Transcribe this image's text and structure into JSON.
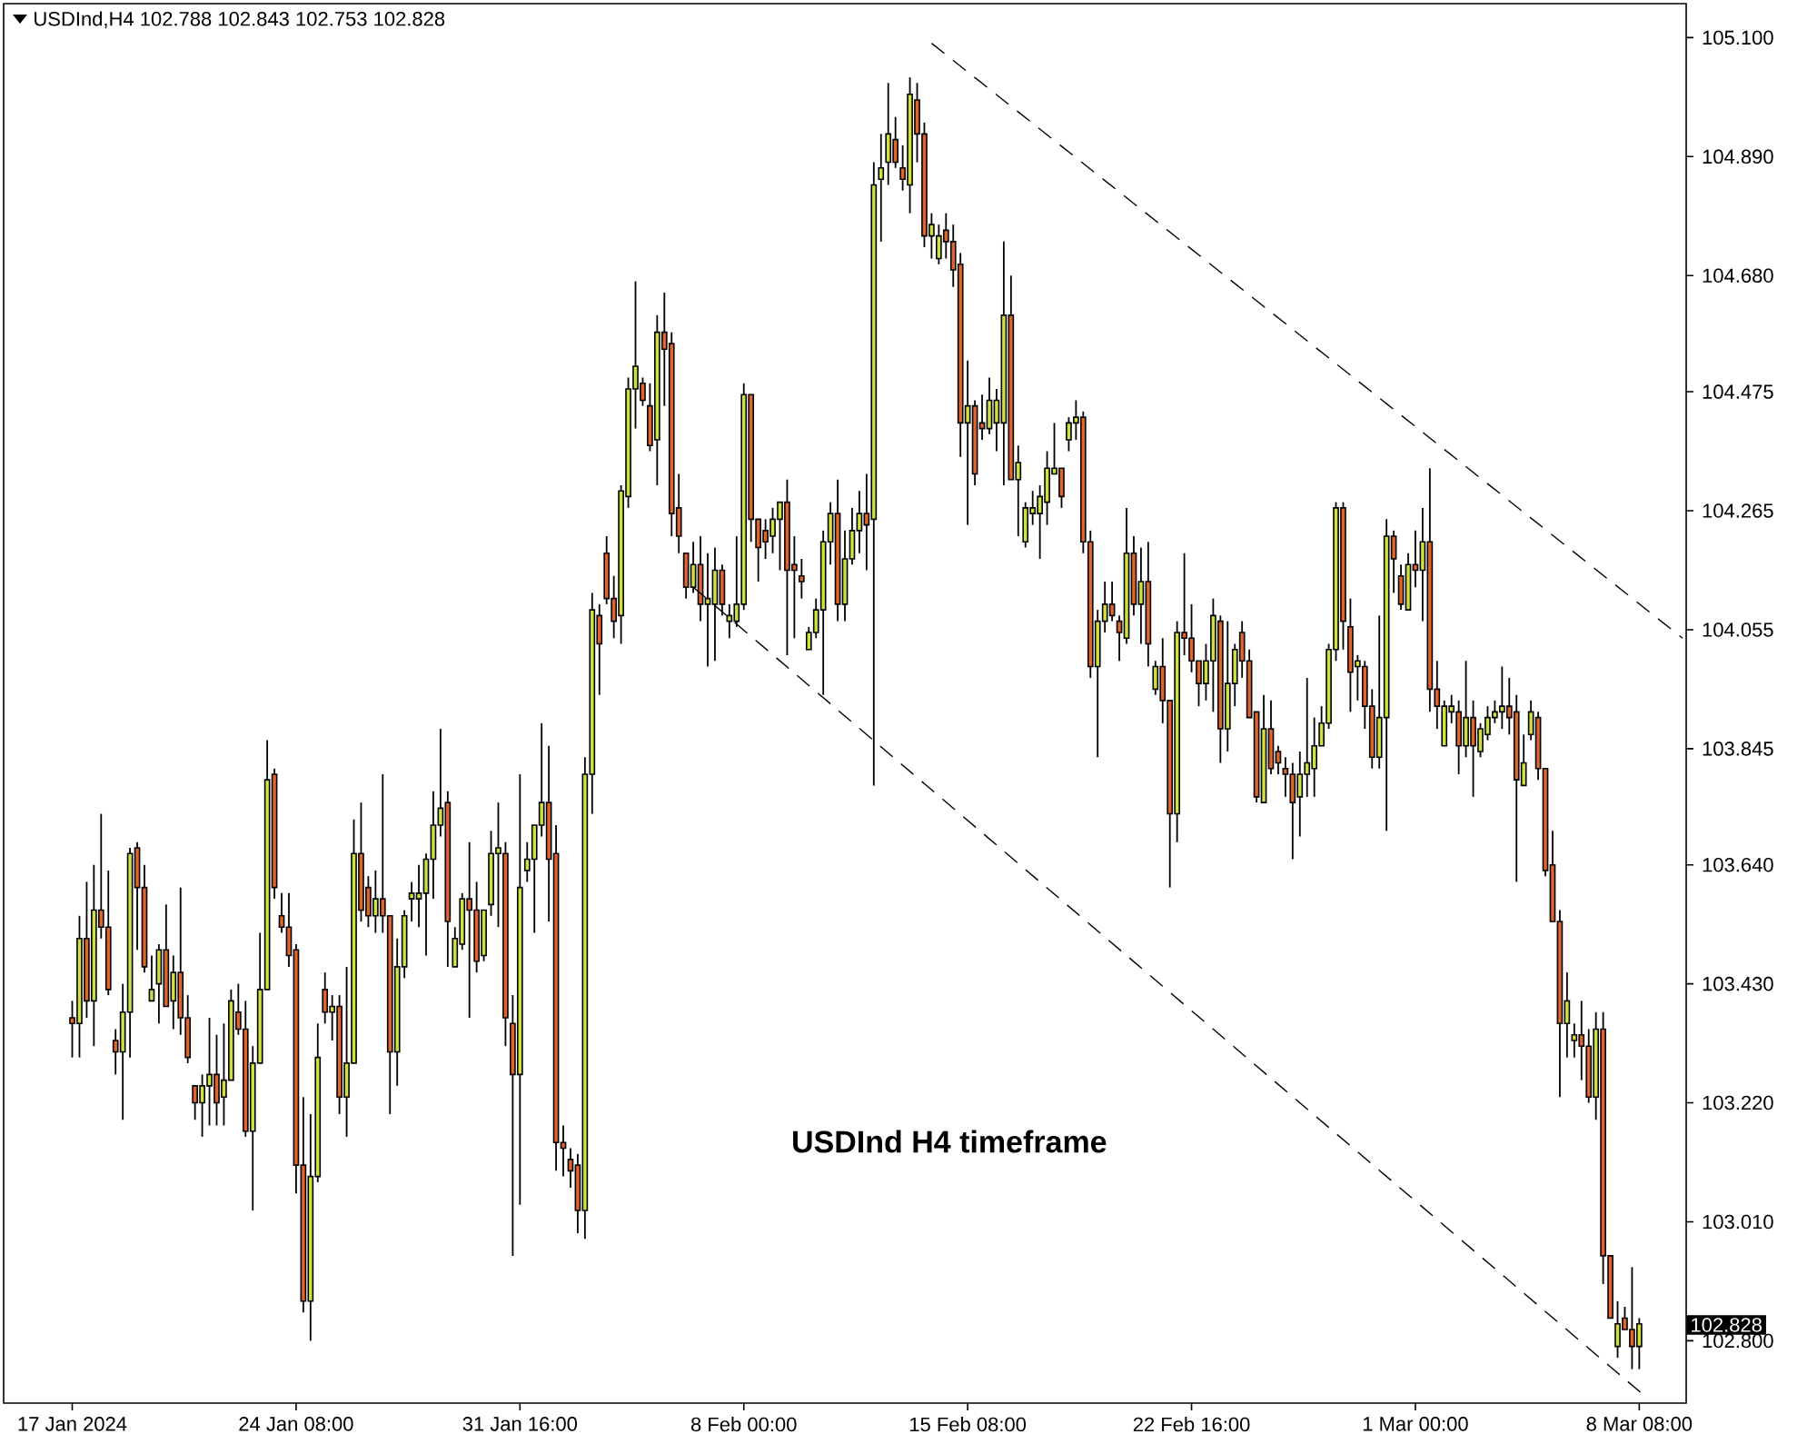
{
  "chart_data": {
    "type": "candlestick",
    "title": "USDInd,H4  102.788 102.843 102.753 102.828",
    "annotations": [
      "USDInd H4 timeframe"
    ],
    "categories": [
      "17 Jan 2024",
      null,
      null,
      null,
      null,
      null,
      null,
      null,
      null,
      null,
      null,
      null,
      null,
      null,
      null,
      null,
      null,
      null,
      null,
      null,
      null,
      null,
      null,
      null,
      null,
      null,
      null,
      null,
      null,
      null,
      null,
      "24 Jan 08:00",
      null,
      null,
      null,
      null,
      null,
      null,
      null,
      null,
      null,
      null,
      null,
      null,
      null,
      null,
      null,
      null,
      null,
      null,
      null,
      null,
      null,
      null,
      null,
      null,
      null,
      null,
      null,
      null,
      null,
      null,
      "31 Jan 16:00",
      null,
      null,
      null,
      null,
      null,
      null,
      null,
      null,
      null,
      null,
      null,
      null,
      null,
      null,
      null,
      null,
      null,
      null,
      null,
      null,
      null,
      null,
      null,
      null,
      null,
      null,
      null,
      null,
      null,
      null,
      "8 Feb 00:00",
      null,
      null,
      null,
      null,
      null,
      null,
      null,
      null,
      null,
      null,
      null,
      null,
      null,
      null,
      null,
      null,
      null,
      null,
      null,
      null,
      null,
      null,
      null,
      null,
      null,
      null,
      null,
      null,
      null,
      null,
      "15 Feb 08:00",
      null,
      null,
      null,
      null,
      null,
      null,
      null,
      null,
      null,
      null,
      null,
      null,
      null,
      null,
      null,
      null,
      null,
      null,
      null,
      null,
      null,
      null,
      null,
      null,
      null,
      null,
      null,
      null,
      null,
      null,
      "22 Feb 16:00",
      null,
      null,
      null,
      null,
      null,
      null,
      null,
      null,
      null,
      null,
      null,
      null,
      null,
      null,
      null,
      null,
      null,
      null,
      null,
      null,
      null,
      null,
      null,
      null,
      null,
      null,
      null,
      null,
      null,
      null,
      "1 Mar 00:00",
      null,
      null,
      null,
      null,
      null,
      null,
      null,
      null,
      null,
      null,
      null,
      null,
      null,
      null,
      null,
      null,
      null,
      null,
      null,
      null,
      null,
      null,
      null,
      null,
      null,
      null,
      null,
      null,
      null,
      null,
      "8 Mar 08:00",
      null,
      null,
      null,
      null,
      null,
      null
    ],
    "ylim": [
      102.69,
      105.16
    ],
    "yticks": [
      {
        "value": 102.8,
        "label": "102.800"
      },
      {
        "value": 103.01,
        "label": "103.010"
      },
      {
        "value": 103.22,
        "label": "103.220"
      },
      {
        "value": 103.43,
        "label": "103.430"
      },
      {
        "value": 103.64,
        "label": "103.640"
      },
      {
        "value": 103.845,
        "label": "103.845"
      },
      {
        "value": 104.055,
        "label": "104.055"
      },
      {
        "value": 104.265,
        "label": "104.265"
      },
      {
        "value": 104.475,
        "label": "104.475"
      },
      {
        "value": 104.68,
        "label": "104.680"
      },
      {
        "value": 104.89,
        "label": "104.890"
      },
      {
        "value": 105.1,
        "label": "105.100"
      }
    ],
    "ref_lines": [
      {
        "axis": "y",
        "value": 102.828,
        "label": "102.828",
        "color": "#000000"
      }
    ],
    "series": [
      {
        "type": "candlestick",
        "ohlc": [
          [
            103.37,
            103.4,
            103.3,
            103.36
          ],
          [
            103.36,
            103.55,
            103.3,
            103.51
          ],
          [
            103.51,
            103.61,
            103.37,
            103.4
          ],
          [
            103.4,
            103.64,
            103.32,
            103.56
          ],
          [
            103.56,
            103.73,
            103.51,
            103.53
          ],
          [
            103.53,
            103.63,
            103.41,
            103.42
          ],
          [
            103.33,
            103.35,
            103.27,
            103.31
          ],
          [
            103.31,
            103.43,
            103.19,
            103.38
          ],
          [
            103.38,
            103.67,
            103.3,
            103.66
          ],
          [
            103.67,
            103.68,
            103.49,
            103.6
          ],
          [
            103.6,
            103.64,
            103.45,
            103.46
          ],
          [
            103.4,
            103.48,
            103.4,
            103.42
          ],
          [
            103.43,
            103.5,
            103.36,
            103.49
          ],
          [
            103.49,
            103.57,
            103.39,
            103.39
          ],
          [
            103.4,
            103.48,
            103.35,
            103.45
          ],
          [
            103.45,
            103.6,
            103.34,
            103.37
          ],
          [
            103.37,
            103.41,
            103.29,
            103.3
          ],
          [
            103.25,
            103.25,
            103.19,
            103.22
          ],
          [
            103.22,
            103.27,
            103.16,
            103.25
          ],
          [
            103.25,
            103.37,
            103.18,
            103.27
          ],
          [
            103.27,
            103.34,
            103.18,
            103.22
          ],
          [
            103.23,
            103.36,
            103.18,
            103.26
          ],
          [
            103.26,
            103.42,
            103.26,
            103.4
          ],
          [
            103.38,
            103.43,
            103.34,
            103.35
          ],
          [
            103.35,
            103.4,
            103.16,
            103.17
          ],
          [
            103.17,
            103.32,
            103.03,
            103.29
          ],
          [
            103.29,
            103.52,
            103.29,
            103.42
          ],
          [
            103.42,
            103.86,
            103.42,
            103.79
          ],
          [
            103.8,
            103.81,
            103.58,
            103.6
          ],
          [
            103.55,
            103.59,
            103.52,
            103.53
          ],
          [
            103.53,
            103.59,
            103.46,
            103.48
          ],
          [
            103.49,
            103.5,
            103.06,
            103.11
          ],
          [
            103.11,
            103.23,
            102.85,
            102.87
          ],
          [
            102.87,
            103.2,
            102.8,
            103.09
          ],
          [
            103.09,
            103.36,
            103.08,
            103.3
          ],
          [
            103.42,
            103.45,
            103.36,
            103.38
          ],
          [
            103.38,
            103.41,
            103.33,
            103.39
          ],
          [
            103.39,
            103.41,
            103.2,
            103.23
          ],
          [
            103.23,
            103.46,
            103.16,
            103.29
          ],
          [
            103.29,
            103.72,
            103.29,
            103.66
          ],
          [
            103.66,
            103.75,
            103.54,
            103.56
          ],
          [
            103.6,
            103.62,
            103.53,
            103.55
          ],
          [
            103.55,
            103.63,
            103.52,
            103.58
          ],
          [
            103.58,
            103.8,
            103.52,
            103.55
          ],
          [
            103.55,
            103.55,
            103.2,
            103.31
          ],
          [
            103.31,
            103.51,
            103.25,
            103.46
          ],
          [
            103.46,
            103.56,
            103.44,
            103.55
          ],
          [
            103.58,
            103.61,
            103.54,
            103.59
          ],
          [
            103.58,
            103.64,
            103.53,
            103.59
          ],
          [
            103.59,
            103.66,
            103.48,
            103.65
          ],
          [
            103.65,
            103.77,
            103.58,
            103.71
          ],
          [
            103.71,
            103.88,
            103.69,
            103.74
          ],
          [
            103.75,
            103.77,
            103.46,
            103.54
          ],
          [
            103.46,
            103.53,
            103.46,
            103.51
          ],
          [
            103.5,
            103.59,
            103.49,
            103.58
          ],
          [
            103.58,
            103.68,
            103.37,
            103.56
          ],
          [
            103.56,
            103.61,
            103.45,
            103.47
          ],
          [
            103.48,
            103.56,
            103.47,
            103.56
          ],
          [
            103.57,
            103.7,
            103.55,
            103.66
          ],
          [
            103.66,
            103.75,
            103.53,
            103.67
          ],
          [
            103.66,
            103.68,
            103.32,
            103.37
          ],
          [
            103.36,
            103.41,
            102.95,
            103.27
          ],
          [
            103.27,
            103.8,
            103.04,
            103.6
          ],
          [
            103.63,
            103.68,
            103.61,
            103.65
          ],
          [
            103.65,
            103.71,
            103.52,
            103.71
          ],
          [
            103.71,
            103.89,
            103.69,
            103.75
          ],
          [
            103.75,
            103.85,
            103.54,
            103.65
          ],
          [
            103.66,
            103.71,
            103.1,
            103.15
          ],
          [
            103.15,
            103.18,
            103.09,
            103.14
          ],
          [
            103.12,
            103.14,
            103.07,
            103.1
          ],
          [
            103.11,
            103.13,
            102.99,
            103.03
          ],
          [
            103.03,
            103.83,
            102.98,
            103.8
          ],
          [
            103.8,
            104.12,
            103.73,
            104.09
          ],
          [
            104.08,
            104.1,
            103.94,
            104.03
          ],
          [
            104.19,
            104.22,
            104.1,
            104.11
          ],
          [
            104.11,
            104.15,
            104.04,
            104.07
          ],
          [
            104.08,
            104.31,
            104.03,
            104.3
          ],
          [
            104.29,
            104.5,
            104.27,
            104.48
          ],
          [
            104.48,
            104.67,
            104.41,
            104.52
          ],
          [
            104.49,
            104.5,
            104.45,
            104.46
          ],
          [
            104.45,
            104.49,
            104.37,
            104.38
          ],
          [
            104.39,
            104.61,
            104.31,
            104.58
          ],
          [
            104.58,
            104.65,
            104.45,
            104.55
          ],
          [
            104.56,
            104.58,
            104.22,
            104.26
          ],
          [
            104.27,
            104.33,
            104.19,
            104.22
          ],
          [
            104.19,
            104.19,
            104.11,
            104.13
          ],
          [
            104.13,
            104.21,
            104.12,
            104.17
          ],
          [
            104.17,
            104.22,
            104.07,
            104.1
          ],
          [
            104.1,
            104.19,
            103.99,
            104.11
          ],
          [
            104.1,
            104.2,
            104.0,
            104.16
          ],
          [
            104.16,
            104.17,
            104.08,
            104.1
          ],
          [
            104.07,
            104.1,
            104.04,
            104.08
          ],
          [
            104.07,
            104.22,
            104.06,
            104.1
          ],
          [
            104.1,
            104.49,
            104.09,
            104.47
          ],
          [
            104.47,
            104.47,
            104.21,
            104.25
          ],
          [
            104.25,
            104.25,
            104.14,
            104.2
          ],
          [
            104.23,
            104.25,
            104.18,
            104.21
          ],
          [
            104.22,
            104.27,
            104.19,
            104.25
          ],
          [
            104.25,
            104.28,
            104.16,
            104.28
          ],
          [
            104.28,
            104.32,
            104.01,
            104.16
          ],
          [
            104.17,
            104.22,
            104.04,
            104.16
          ],
          [
            104.15,
            104.18,
            104.11,
            104.14
          ],
          [
            104.02,
            104.06,
            104.02,
            104.05
          ],
          [
            104.05,
            104.11,
            104.04,
            104.09
          ],
          [
            104.09,
            104.23,
            103.94,
            104.21
          ],
          [
            104.21,
            104.28,
            104.17,
            104.26
          ],
          [
            104.26,
            104.32,
            104.07,
            104.1
          ],
          [
            104.1,
            104.23,
            104.07,
            104.18
          ],
          [
            104.18,
            104.27,
            104.17,
            104.23
          ],
          [
            104.23,
            104.3,
            104.19,
            104.26
          ],
          [
            104.26,
            104.33,
            104.16,
            104.24
          ],
          [
            104.25,
            104.88,
            103.78,
            104.84
          ],
          [
            104.85,
            104.93,
            104.74,
            104.87
          ],
          [
            104.88,
            105.02,
            104.84,
            104.93
          ],
          [
            104.92,
            104.96,
            104.87,
            104.88
          ],
          [
            104.87,
            104.91,
            104.83,
            104.85
          ],
          [
            104.84,
            105.03,
            104.79,
            105.0
          ],
          [
            104.99,
            105.02,
            104.88,
            104.93
          ],
          [
            104.93,
            104.95,
            104.73,
            104.75
          ],
          [
            104.75,
            104.79,
            104.71,
            104.77
          ],
          [
            104.71,
            104.77,
            104.7,
            104.75
          ],
          [
            104.76,
            104.79,
            104.71,
            104.74
          ],
          [
            104.74,
            104.77,
            104.66,
            104.69
          ],
          [
            104.7,
            104.72,
            104.36,
            104.42
          ],
          [
            104.42,
            104.53,
            104.24,
            104.45
          ],
          [
            104.45,
            104.46,
            104.31,
            104.33
          ],
          [
            104.42,
            104.47,
            104.39,
            104.41
          ],
          [
            104.41,
            104.5,
            104.4,
            104.46
          ],
          [
            104.42,
            104.48,
            104.37,
            104.46
          ],
          [
            104.42,
            104.74,
            104.31,
            104.61
          ],
          [
            104.61,
            104.68,
            104.32,
            104.32
          ],
          [
            104.32,
            104.38,
            104.22,
            104.35
          ],
          [
            104.21,
            104.28,
            104.2,
            104.27
          ],
          [
            104.26,
            104.3,
            104.24,
            104.27
          ],
          [
            104.26,
            104.31,
            104.18,
            104.29
          ],
          [
            104.28,
            104.37,
            104.24,
            104.34
          ],
          [
            104.33,
            104.42,
            104.33,
            104.34
          ],
          [
            104.34,
            104.34,
            104.27,
            104.29
          ],
          [
            104.39,
            104.43,
            104.37,
            104.42
          ],
          [
            104.42,
            104.46,
            104.39,
            104.43
          ],
          [
            104.43,
            104.44,
            104.19,
            104.21
          ],
          [
            104.21,
            104.23,
            103.97,
            103.99
          ],
          [
            103.99,
            104.09,
            103.83,
            104.07
          ],
          [
            104.07,
            104.14,
            104.05,
            104.1
          ],
          [
            104.1,
            104.14,
            104.07,
            104.08
          ],
          [
            104.07,
            104.08,
            104.0,
            104.05
          ],
          [
            104.04,
            104.27,
            104.03,
            104.19
          ],
          [
            104.19,
            104.22,
            104.08,
            104.1
          ],
          [
            104.1,
            104.2,
            104.03,
            104.14
          ],
          [
            104.14,
            104.21,
            103.99,
            104.03
          ],
          [
            103.95,
            104.0,
            103.94,
            103.99
          ],
          [
            103.99,
            104.04,
            103.89,
            103.93
          ],
          [
            103.93,
            103.93,
            103.6,
            103.73
          ],
          [
            103.73,
            104.07,
            103.68,
            104.05
          ],
          [
            104.05,
            104.19,
            104.01,
            104.04
          ],
          [
            104.04,
            104.1,
            103.98,
            104.0
          ],
          [
            104.0,
            104.0,
            103.92,
            103.96
          ],
          [
            103.96,
            104.03,
            103.93,
            104.0
          ],
          [
            104.0,
            104.11,
            103.91,
            104.08
          ],
          [
            104.07,
            104.08,
            103.82,
            103.88
          ],
          [
            103.88,
            104.07,
            103.84,
            103.96
          ],
          [
            103.96,
            104.03,
            103.92,
            104.02
          ],
          [
            104.05,
            104.07,
            103.97,
            104.0
          ],
          [
            104.0,
            104.02,
            103.9,
            103.9
          ],
          [
            103.91,
            103.91,
            103.75,
            103.76
          ],
          [
            103.75,
            103.94,
            103.75,
            103.88
          ],
          [
            103.88,
            103.93,
            103.8,
            103.81
          ],
          [
            103.84,
            103.85,
            103.8,
            103.82
          ],
          [
            103.81,
            103.83,
            103.76,
            103.8
          ],
          [
            103.8,
            103.82,
            103.65,
            103.75
          ],
          [
            103.76,
            103.84,
            103.69,
            103.8
          ],
          [
            103.8,
            103.97,
            103.76,
            103.82
          ],
          [
            103.81,
            103.9,
            103.76,
            103.85
          ],
          [
            103.85,
            103.92,
            103.85,
            103.89
          ],
          [
            103.89,
            104.03,
            103.88,
            104.02
          ],
          [
            104.02,
            104.28,
            104.0,
            104.27
          ],
          [
            104.27,
            104.28,
            104.02,
            104.07
          ],
          [
            104.06,
            104.11,
            103.91,
            103.98
          ],
          [
            103.99,
            104.01,
            103.93,
            104.0
          ],
          [
            103.99,
            104.0,
            103.88,
            103.92
          ],
          [
            103.92,
            103.95,
            103.81,
            103.83
          ],
          [
            103.83,
            104.08,
            103.81,
            103.9
          ],
          [
            103.9,
            104.25,
            103.7,
            104.22
          ],
          [
            104.22,
            104.23,
            104.12,
            104.18
          ],
          [
            104.15,
            104.17,
            104.09,
            104.1
          ],
          [
            104.09,
            104.19,
            104.09,
            104.17
          ],
          [
            104.17,
            104.23,
            104.13,
            104.16
          ],
          [
            104.16,
            104.27,
            104.07,
            104.21
          ],
          [
            104.21,
            104.34,
            103.91,
            103.95
          ],
          [
            103.95,
            104.0,
            103.88,
            103.92
          ],
          [
            103.85,
            103.93,
            103.85,
            103.92
          ],
          [
            103.91,
            103.94,
            103.89,
            103.92
          ],
          [
            103.91,
            103.93,
            103.8,
            103.85
          ],
          [
            103.85,
            104.0,
            103.83,
            103.9
          ],
          [
            103.9,
            103.93,
            103.76,
            103.85
          ],
          [
            103.84,
            103.89,
            103.83,
            103.88
          ],
          [
            103.87,
            103.92,
            103.86,
            103.9
          ],
          [
            103.9,
            103.93,
            103.89,
            103.91
          ],
          [
            103.91,
            103.99,
            103.88,
            103.92
          ],
          [
            103.92,
            103.97,
            103.87,
            103.9
          ],
          [
            103.91,
            103.94,
            103.61,
            103.79
          ],
          [
            103.78,
            103.87,
            103.78,
            103.82
          ],
          [
            103.87,
            103.93,
            103.86,
            103.91
          ],
          [
            103.9,
            103.91,
            103.79,
            103.81
          ],
          [
            103.81,
            103.81,
            103.62,
            103.63
          ],
          [
            103.64,
            103.7,
            103.54,
            103.54
          ],
          [
            103.54,
            103.56,
            103.23,
            103.36
          ],
          [
            103.36,
            103.45,
            103.3,
            103.4
          ],
          [
            103.33,
            103.36,
            103.3,
            103.34
          ],
          [
            103.34,
            103.4,
            103.26,
            103.32
          ],
          [
            103.32,
            103.35,
            103.22,
            103.23
          ],
          [
            103.23,
            103.38,
            103.19,
            103.35
          ],
          [
            103.35,
            103.38,
            102.9,
            102.95
          ],
          [
            102.95,
            102.95,
            102.84,
            102.84
          ],
          [
            102.79,
            102.87,
            102.77,
            102.83
          ],
          [
            102.84,
            102.86,
            102.82,
            102.82
          ],
          [
            102.82,
            102.93,
            102.75,
            102.79
          ],
          [
            102.79,
            102.84,
            102.75,
            102.83
          ],
          null,
          null,
          null,
          null,
          null,
          null
        ],
        "colors": [
          "#e0642c",
          "#cfe040",
          "#e0642c",
          "#cfe040",
          "#e0642c",
          "#e0642c",
          "#e0642c",
          "#cfe040",
          "#cfe040",
          "#e0642c",
          "#e0642c",
          "#cfe040",
          "#cfe040",
          "#e0642c",
          "#cfe040",
          "#e0642c",
          "#e0642c",
          "#e0642c",
          "#cfe040",
          "#cfe040",
          "#e0642c",
          "#cfe040",
          "#cfe040",
          "#e0642c",
          "#e0642c",
          "#cfe040",
          "#cfe040",
          "#cfe040",
          "#e0642c",
          "#e0642c",
          "#e0642c",
          "#e0642c",
          "#e0642c",
          "#cfe040",
          "#cfe040",
          "#e0642c",
          "#cfe040",
          "#e0642c",
          "#cfe040",
          "#cfe040",
          "#e0642c",
          "#e0642c",
          "#cfe040",
          "#e0642c",
          "#e0642c",
          "#cfe040",
          "#cfe040",
          "#cfe040",
          "#cfe040",
          "#cfe040",
          "#cfe040",
          "#cfe040",
          "#e0642c",
          "#cfe040",
          "#cfe040",
          "#e0642c",
          "#e0642c",
          "#cfe040",
          "#cfe040",
          "#cfe040",
          "#e0642c",
          "#e0642c",
          "#cfe040",
          "#cfe040",
          "#cfe040",
          "#cfe040",
          "#e0642c",
          "#e0642c",
          "#e0642c",
          "#e0642c",
          "#e0642c",
          "#cfe040",
          "#cfe040",
          "#e0642c",
          "#e0642c",
          "#e0642c",
          "#cfe040",
          "#cfe040",
          "#cfe040",
          "#e0642c",
          "#e0642c",
          "#cfe040",
          "#e0642c",
          "#e0642c",
          "#e0642c",
          "#e0642c",
          "#cfe040",
          "#e0642c",
          "#cfe040",
          "#cfe040",
          "#e0642c",
          "#cfe040",
          "#cfe040",
          "#cfe040",
          "#e0642c",
          "#e0642c",
          "#e0642c",
          "#cfe040",
          "#cfe040",
          "#e0642c",
          "#e0642c",
          "#e0642c",
          "#cfe040",
          "#cfe040",
          "#cfe040",
          "#cfe040",
          "#e0642c",
          "#cfe040",
          "#cfe040",
          "#cfe040",
          "#e0642c",
          "#cfe040",
          "#cfe040",
          "#cfe040",
          "#e0642c",
          "#e0642c",
          "#cfe040",
          "#e0642c",
          "#e0642c",
          "#cfe040",
          "#cfe040",
          "#e0642c",
          "#e0642c",
          "#e0642c",
          "#cfe040",
          "#e0642c",
          "#e0642c",
          "#cfe040",
          "#cfe040",
          "#cfe040",
          "#e0642c",
          "#cfe040",
          "#cfe040",
          "#cfe040",
          "#cfe040",
          "#cfe040",
          "#cfe040",
          "#e0642c",
          "#cfe040",
          "#cfe040",
          "#e0642c",
          "#e0642c",
          "#cfe040",
          "#cfe040",
          "#e0642c",
          "#e0642c",
          "#cfe040",
          "#e0642c",
          "#cfe040",
          "#e0642c",
          "#cfe040",
          "#e0642c",
          "#e0642c",
          "#cfe040",
          "#e0642c",
          "#e0642c",
          "#e0642c",
          "#cfe040",
          "#cfe040",
          "#e0642c",
          "#cfe040",
          "#cfe040",
          "#e0642c",
          "#e0642c",
          "#e0642c",
          "#cfe040",
          "#e0642c",
          "#e0642c",
          "#e0642c",
          "#e0642c",
          "#cfe040",
          "#cfe040",
          "#cfe040",
          "#cfe040",
          "#cfe040",
          "#cfe040",
          "#e0642c",
          "#e0642c",
          "#cfe040",
          "#e0642c",
          "#e0642c",
          "#cfe040",
          "#cfe040",
          "#e0642c",
          "#e0642c",
          "#cfe040",
          "#e0642c",
          "#cfe040",
          "#e0642c",
          "#e0642c",
          "#cfe040",
          "#cfe040",
          "#e0642c",
          "#cfe040",
          "#e0642c",
          "#cfe040",
          "#cfe040",
          "#cfe040",
          "#cfe040",
          "#e0642c",
          "#e0642c",
          "#cfe040",
          "#cfe040",
          "#e0642c",
          "#e0642c",
          "#e0642c",
          "#e0642c",
          "#cfe040",
          "#cfe040",
          "#e0642c",
          "#e0642c",
          "#cfe040",
          "#e0642c",
          "#e0642c",
          "#cfe040",
          "#e0642c",
          "#e0642c",
          "#cfe040",
          null,
          null,
          null,
          null,
          null,
          null
        ]
      },
      {
        "type": "line",
        "color": "#000000",
        "line_style": "dashed",
        "values": [
          null,
          null,
          null,
          null,
          null,
          null,
          null,
          null,
          null,
          null,
          null,
          null,
          null,
          null,
          null,
          null,
          null,
          null,
          null,
          null,
          null,
          null,
          null,
          null,
          null,
          null,
          null,
          null,
          null,
          null,
          null,
          null,
          null,
          null,
          null,
          null,
          null,
          null,
          null,
          null,
          null,
          null,
          null,
          null,
          null,
          null,
          null,
          null,
          null,
          null,
          null,
          null,
          null,
          null,
          null,
          null,
          null,
          null,
          null,
          null,
          null,
          null,
          null,
          null,
          null,
          null,
          null,
          null,
          null,
          null,
          null,
          null,
          null,
          null,
          null,
          null,
          null,
          null,
          null,
          null,
          null,
          null,
          null,
          null,
          null,
          null,
          null,
          null,
          null,
          null,
          null,
          null,
          null,
          null,
          null,
          null,
          null,
          null,
          null,
          null,
          null,
          null,
          null,
          null,
          null,
          null,
          null,
          null,
          null,
          null,
          null,
          null,
          null,
          null,
          null,
          null,
          null,
          null,
          null,
          105.09,
          null,
          null,
          null,
          null,
          null,
          null,
          null,
          null,
          null,
          null,
          null,
          null,
          null,
          null,
          null,
          null,
          null,
          null,
          null,
          null,
          null,
          null,
          null,
          null,
          null,
          null,
          null,
          null,
          null,
          null,
          null,
          null,
          null,
          null,
          null,
          null,
          null,
          null,
          null,
          null,
          null,
          null,
          null,
          null,
          null,
          null,
          null,
          null,
          null,
          null,
          null,
          null,
          null,
          null,
          null,
          null,
          null,
          null,
          null,
          null,
          null,
          null,
          null,
          null,
          null,
          null,
          null,
          null,
          null,
          null,
          null,
          null,
          null,
          null,
          null,
          null,
          null,
          null,
          null,
          null,
          null,
          null,
          null,
          null,
          null,
          null,
          null,
          null,
          null,
          null,
          null,
          null,
          null,
          null,
          null,
          null,
          null,
          null,
          null,
          null,
          null,
          null,
          null,
          104.04
        ]
      },
      {
        "type": "line",
        "color": "#000000",
        "line_style": "dashed",
        "values": [
          null,
          null,
          null,
          null,
          null,
          null,
          null,
          null,
          null,
          null,
          null,
          null,
          null,
          null,
          null,
          null,
          null,
          null,
          null,
          null,
          null,
          null,
          null,
          null,
          null,
          null,
          null,
          null,
          null,
          null,
          null,
          null,
          null,
          null,
          null,
          null,
          null,
          null,
          null,
          null,
          null,
          null,
          null,
          null,
          null,
          null,
          null,
          null,
          null,
          null,
          null,
          null,
          null,
          null,
          null,
          null,
          null,
          null,
          null,
          null,
          null,
          null,
          null,
          null,
          null,
          null,
          null,
          null,
          null,
          null,
          null,
          null,
          null,
          null,
          null,
          null,
          null,
          null,
          null,
          null,
          null,
          null,
          null,
          null,
          null,
          null,
          104.13,
          null,
          null,
          null,
          null,
          null,
          null,
          null,
          null,
          null,
          null,
          null,
          null,
          null,
          null,
          null,
          null,
          null,
          null,
          null,
          null,
          null,
          null,
          null,
          null,
          null,
          null,
          null,
          null,
          null,
          null,
          null,
          null,
          null,
          null,
          null,
          null,
          null,
          null,
          null,
          null,
          null,
          null,
          null,
          null,
          null,
          null,
          null,
          null,
          null,
          null,
          null,
          null,
          null,
          null,
          null,
          null,
          null,
          null,
          null,
          null,
          null,
          null,
          null,
          null,
          null,
          null,
          null,
          null,
          null,
          null,
          null,
          null,
          null,
          null,
          null,
          null,
          null,
          null,
          null,
          null,
          null,
          null,
          null,
          null,
          null,
          null,
          null,
          null,
          null,
          null,
          null,
          null,
          null,
          null,
          null,
          null,
          null,
          null,
          null,
          null,
          null,
          null,
          null,
          null,
          null,
          null,
          null,
          null,
          null,
          null,
          null,
          null,
          null,
          null,
          null,
          null,
          null,
          null,
          null,
          null,
          null,
          null,
          null,
          null,
          null,
          null,
          null,
          null,
          null,
          null,
          null,
          102.7,
          null,
          null,
          null,
          null,
          null
        ]
      }
    ]
  }
}
